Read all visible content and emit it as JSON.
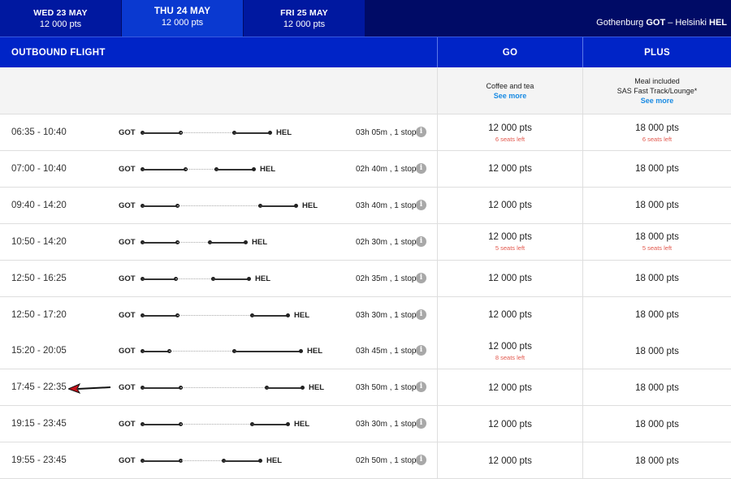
{
  "date_tabs": [
    {
      "date": "WED 23 MAY",
      "price": "12 000 pts",
      "active": false
    },
    {
      "date": "THU 24 MAY",
      "price": "12 000 pts",
      "active": true
    },
    {
      "date": "FRI 25 MAY",
      "price": "12 000 pts",
      "active": false
    }
  ],
  "route": {
    "from_city": "Gothenburg",
    "from_code": "GOT",
    "separator": "–",
    "to_city": "Helsinki",
    "to_code": "HEL"
  },
  "header": {
    "outbound": "OUTBOUND FLIGHT",
    "go": "GO",
    "plus": "PLUS"
  },
  "fares": {
    "go": {
      "line1": "Coffee and tea",
      "line2": "",
      "see_more": "See more"
    },
    "plus": {
      "line1": "Meal included",
      "line2": "SAS Fast Track/Lounge*",
      "see_more": "See more"
    }
  },
  "info_icon": "info-icon",
  "flights": [
    {
      "time": "06:35 - 10:40",
      "from": "GOT",
      "to": "HEL",
      "duration": "03h 05m , 1 stop",
      "go": "12 000 pts",
      "go_seats": "6 seats left",
      "plus": "18 000 pts",
      "plus_seats": "6 seats left"
    },
    {
      "time": "07:00 - 10:40",
      "from": "GOT",
      "to": "HEL",
      "duration": "02h 40m , 1 stop",
      "go": "12 000 pts",
      "go_seats": "",
      "plus": "18 000 pts",
      "plus_seats": ""
    },
    {
      "time": "09:40 - 14:20",
      "from": "GOT",
      "to": "HEL",
      "duration": "03h 40m , 1 stop",
      "go": "12 000 pts",
      "go_seats": "",
      "plus": "18 000 pts",
      "plus_seats": ""
    },
    {
      "time": "10:50 - 14:20",
      "from": "GOT",
      "to": "HEL",
      "duration": "02h 30m , 1 stop",
      "go": "12 000 pts",
      "go_seats": "5 seats left",
      "plus": "18 000 pts",
      "plus_seats": "5 seats left"
    },
    {
      "time": "12:50 - 16:25",
      "from": "GOT",
      "to": "HEL",
      "duration": "02h 35m , 1 stop",
      "go": "12 000 pts",
      "go_seats": "",
      "plus": "18 000 pts",
      "plus_seats": ""
    },
    {
      "time": "12:50 - 17:20",
      "from": "GOT",
      "to": "HEL",
      "duration": "03h 30m , 1 stop",
      "go": "12 000 pts",
      "go_seats": "",
      "plus": "18 000 pts",
      "plus_seats": ""
    },
    {
      "time": "15:20 - 20:05",
      "from": "GOT",
      "to": "HEL",
      "duration": "03h 45m , 1 stop",
      "go": "12 000 pts",
      "go_seats": "8 seats left",
      "plus": "18 000 pts",
      "plus_seats": ""
    },
    {
      "time": "17:45 - 22:35",
      "from": "GOT",
      "to": "HEL",
      "duration": "03h 50m , 1 stop",
      "go": "12 000 pts",
      "go_seats": "",
      "plus": "18 000 pts",
      "plus_seats": ""
    },
    {
      "time": "19:15 - 23:45",
      "from": "GOT",
      "to": "HEL",
      "duration": "03h 30m , 1 stop",
      "go": "12 000 pts",
      "go_seats": "",
      "plus": "18 000 pts",
      "plus_seats": ""
    },
    {
      "time": "19:55 - 23:45",
      "from": "GOT",
      "to": "HEL",
      "duration": "02h 50m , 1 stop",
      "go": "12 000 pts",
      "go_seats": "",
      "plus": "18 000 pts",
      "plus_seats": ""
    }
  ],
  "colors": {
    "navy": "#000b66",
    "tab": "#0018a0",
    "active_tab": "#0a39d0",
    "header": "#0024c7",
    "link": "#1a8be3",
    "seats": "#e2574c"
  }
}
